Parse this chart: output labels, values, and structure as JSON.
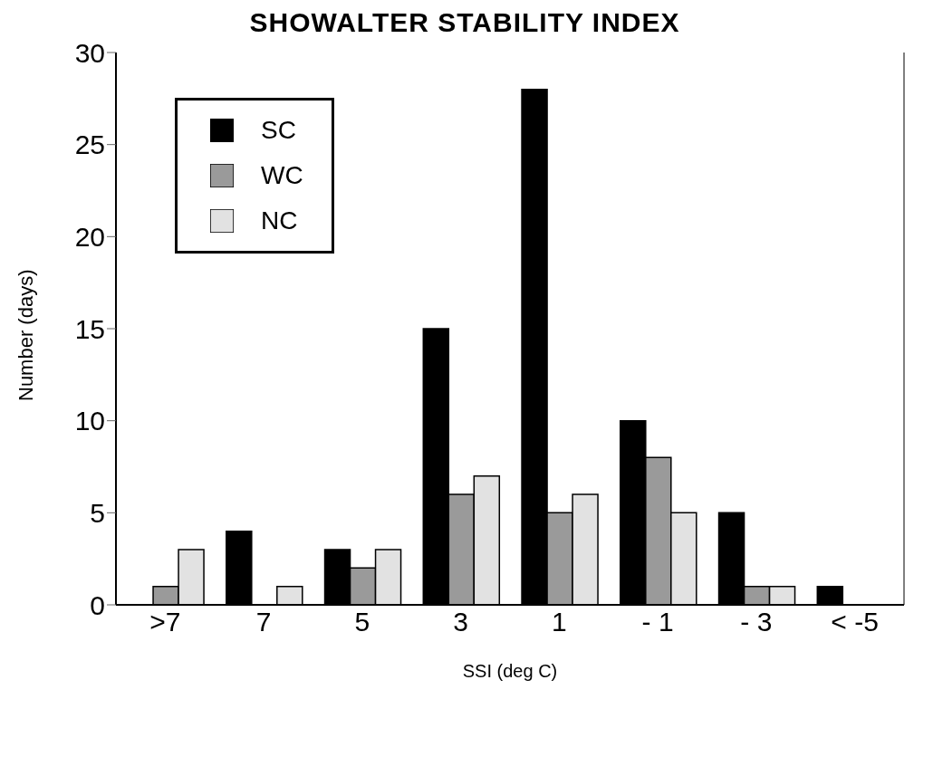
{
  "chart_data": {
    "type": "bar",
    "title": "SHOWALTER STABILITY INDEX",
    "xlabel": "SSI (deg C)",
    "ylabel": "Number (days)",
    "categories": [
      ">7",
      "7",
      "5",
      "3",
      "1",
      "- 1",
      "- 3",
      "< -5"
    ],
    "series": [
      {
        "name": "SC",
        "color": "#000000",
        "values": [
          0,
          4,
          3,
          15,
          28,
          10,
          5,
          1
        ]
      },
      {
        "name": "WC",
        "color": "#9a9a9a",
        "values": [
          1,
          0,
          2,
          6,
          5,
          8,
          1,
          0
        ]
      },
      {
        "name": "NC",
        "color": "#e2e2e2",
        "values": [
          3,
          1,
          3,
          7,
          6,
          5,
          1,
          0
        ]
      }
    ],
    "ylim": [
      0,
      30
    ],
    "yticks": [
      0,
      5,
      10,
      15,
      20,
      25,
      30
    ],
    "grid": false,
    "legend": "top left"
  }
}
